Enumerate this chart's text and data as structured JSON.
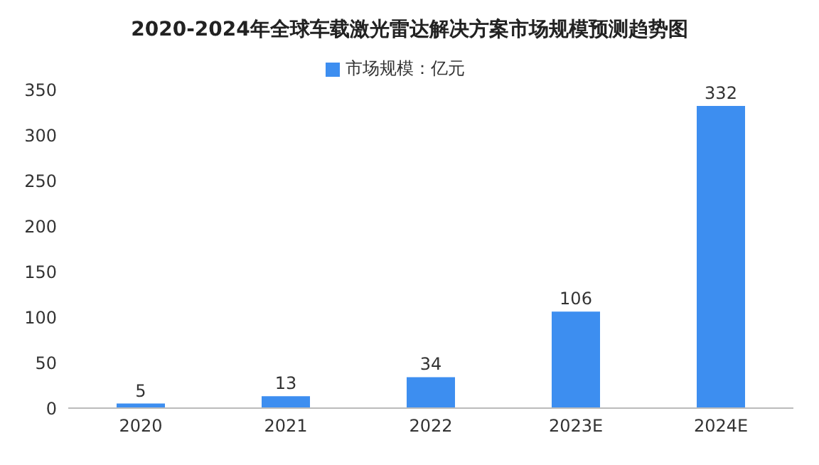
{
  "chart_data": {
    "type": "bar",
    "title": "2020-2024年全球车载激光雷达解决方案市场规模预测趋势图",
    "categories": [
      "2020",
      "2021",
      "2022",
      "2023E",
      "2024E"
    ],
    "series": [
      {
        "name": "市场规模：亿元",
        "color": "#3d8ef0",
        "values": [
          5,
          13,
          34,
          106,
          332
        ]
      }
    ],
    "ylim": [
      0,
      350
    ],
    "yticks": [
      0,
      50,
      100,
      150,
      200,
      250,
      300,
      350
    ],
    "grid": false,
    "legend": "top",
    "data_labels": true
  }
}
